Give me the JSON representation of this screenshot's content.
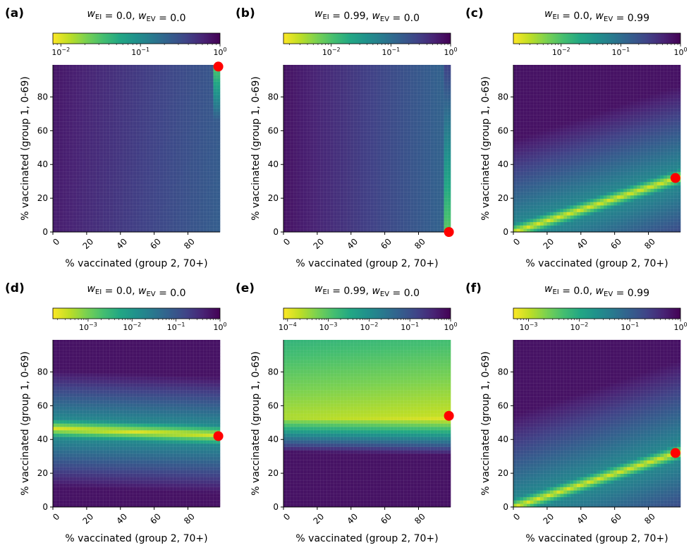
{
  "panels": [
    {
      "id": "a",
      "label": "(a)",
      "title": {
        "w1": "w",
        "s1": "EI",
        "v1": " = 0.0, ",
        "w2": "w",
        "s2": "EV",
        "v2": " = 0.0"
      },
      "colorbar": {
        "min_exp": -2.1,
        "ticks": [
          {
            "base": "10",
            "exp": "−2",
            "e": -2
          },
          {
            "base": "10",
            "exp": "−1",
            "e": -1
          },
          {
            "base": "10",
            "exp": "0",
            "e": 0
          }
        ]
      },
      "xlabel": "% vaccinated (group 2, 70+)",
      "ylabel": "% vaccinated (group 1, 0-69)",
      "optimum": {
        "x": 98,
        "y": 98
      }
    },
    {
      "id": "b",
      "label": "(b)",
      "title": {
        "w1": "w",
        "s1": "EI",
        "v1": " = 0.99, ",
        "w2": "w",
        "s2": "EV",
        "v2": " = 0.0"
      },
      "colorbar": {
        "min_exp": -2.8,
        "ticks": [
          {
            "base": "10",
            "exp": "−2",
            "e": -2
          },
          {
            "base": "10",
            "exp": "−1",
            "e": -1
          },
          {
            "base": "10",
            "exp": "0",
            "e": 0
          }
        ]
      },
      "xlabel": "% vaccinated (group 2, 70+)",
      "ylabel": "% vaccinated (group 1, 0-69)",
      "optimum": {
        "x": 98,
        "y": 0
      }
    },
    {
      "id": "c",
      "label": "(c)",
      "title": {
        "w1": "w",
        "s1": "EI",
        "v1": " = 0.0, ",
        "w2": "w",
        "s2": "EV",
        "v2": " = 0.99"
      },
      "colorbar": {
        "min_exp": -2.8,
        "ticks": [
          {
            "base": "10",
            "exp": "−2",
            "e": -2
          },
          {
            "base": "10",
            "exp": "−1",
            "e": -1
          },
          {
            "base": "10",
            "exp": "0",
            "e": 0
          }
        ]
      },
      "xlabel": "% vaccinated (group 2, 70+)",
      "ylabel": "% vaccinated (group 1, 0-69)",
      "optimum": {
        "x": 96,
        "y": 32
      }
    },
    {
      "id": "d",
      "label": "(d)",
      "title": {
        "w1": "w",
        "s1": "EI",
        "v1": " = 0.0, ",
        "w2": "w",
        "s2": "EV",
        "v2": " = 0.0"
      },
      "colorbar": {
        "min_exp": -3.8,
        "ticks": [
          {
            "base": "10",
            "exp": "−3",
            "e": -3
          },
          {
            "base": "10",
            "exp": "−2",
            "e": -2
          },
          {
            "base": "10",
            "exp": "−1",
            "e": -1
          },
          {
            "base": "10",
            "exp": "0",
            "e": 0
          }
        ]
      },
      "xlabel": "% vaccinated (group 2, 70+)",
      "ylabel": "% vaccinated (group 1, 0-69)",
      "optimum": {
        "x": 98,
        "y": 42
      }
    },
    {
      "id": "e",
      "label": "(e)",
      "title": {
        "w1": "w",
        "s1": "EI",
        "v1": " = 0.99, ",
        "w2": "w",
        "s2": "EV",
        "v2": " = 0.0"
      },
      "colorbar": {
        "min_exp": -4.1,
        "ticks": [
          {
            "base": "10",
            "exp": "−4",
            "e": -4
          },
          {
            "base": "10",
            "exp": "−3",
            "e": -3
          },
          {
            "base": "10",
            "exp": "−2",
            "e": -2
          },
          {
            "base": "10",
            "exp": "−1",
            "e": -1
          },
          {
            "base": "10",
            "exp": "0",
            "e": 0
          }
        ]
      },
      "xlabel": "% vaccinated (group 2, 70+)",
      "ylabel": "% vaccinated (group 1, 0-69)",
      "optimum": {
        "x": 98,
        "y": 54
      }
    },
    {
      "id": "f",
      "label": "(f)",
      "title": {
        "w1": "w",
        "s1": "EI",
        "v1": " = 0.0, ",
        "w2": "w",
        "s2": "EV",
        "v2": " = 0.99"
      },
      "colorbar": {
        "min_exp": -3.3,
        "ticks": [
          {
            "base": "10",
            "exp": "−3",
            "e": -3
          },
          {
            "base": "10",
            "exp": "−2",
            "e": -2
          },
          {
            "base": "10",
            "exp": "−1",
            "e": -1
          },
          {
            "base": "10",
            "exp": "0",
            "e": 0
          }
        ]
      },
      "xlabel": "% vaccinated (group 2, 70+)",
      "ylabel": "% vaccinated (group 1, 0-69)",
      "optimum": {
        "x": 96,
        "y": 32
      }
    }
  ],
  "chart_data": {
    "type": "heatmap",
    "x_range": [
      0,
      99
    ],
    "y_range": [
      0,
      99
    ],
    "x_ticks": [
      0,
      20,
      40,
      60,
      80
    ],
    "y_ticks": [
      0,
      20,
      40,
      60,
      80
    ],
    "colormap": "viridis_r",
    "colorbar_scale": "log",
    "marker_color": "#ff0000"
  }
}
